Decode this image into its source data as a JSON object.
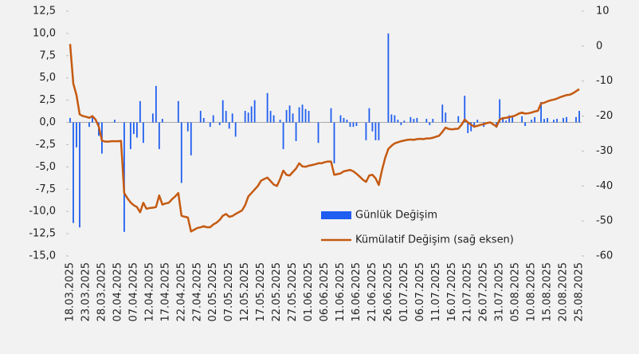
{
  "chart_data": {
    "type": "bar",
    "categories": [
      "18.03.2025",
      null,
      null,
      null,
      null,
      "23.03.2025",
      null,
      null,
      null,
      null,
      "28.03.2025",
      null,
      null,
      null,
      null,
      "02.04.2025",
      null,
      null,
      null,
      null,
      "07.04.2025",
      null,
      null,
      null,
      null,
      "12.04.2025",
      null,
      null,
      null,
      null,
      "17.04.2025",
      null,
      null,
      null,
      null,
      "22.04.2025",
      null,
      null,
      null,
      null,
      "27.04.2025",
      null,
      null,
      null,
      null,
      "02.05.2025",
      null,
      null,
      null,
      null,
      "07.05.2025",
      null,
      null,
      null,
      null,
      "12.05.2025",
      null,
      null,
      null,
      null,
      "17.05.2025",
      null,
      null,
      null,
      null,
      "22.05.2025",
      null,
      null,
      null,
      null,
      "27.05.2025",
      null,
      null,
      null,
      null,
      "01.06.2025",
      null,
      null,
      null,
      null,
      "06.06.2025",
      null,
      null,
      null,
      null,
      "11.06.2025",
      null,
      null,
      null,
      null,
      "16.06.2025",
      null,
      null,
      null,
      null,
      "21.06.2025",
      null,
      null,
      null,
      null,
      "26.06.2025",
      null,
      null,
      null,
      null,
      "01.07.2025",
      null,
      null,
      null,
      null,
      "06.07.2025",
      null,
      null,
      null,
      null,
      "11.07.2025",
      null,
      null,
      null,
      null,
      "16.07.2025",
      null,
      null,
      null,
      null,
      "21.07.2025",
      null,
      null,
      null,
      null,
      "26.07.2025",
      null,
      null,
      null,
      null,
      "31.07.2025",
      null,
      null,
      null,
      null,
      "05.08.2025",
      null,
      null,
      null,
      null,
      "10.08.2025",
      null,
      null,
      null,
      null,
      "15.08.2025",
      null,
      null,
      null,
      null,
      "20.08.2025",
      null,
      null,
      null,
      null,
      "25.08.2025"
    ],
    "series": [
      {
        "name": "Günlük Değişim",
        "type": "bar",
        "color": "#1f5ef0",
        "values": [
          0.5,
          -11.3,
          -2.8,
          -11.8,
          0,
          0,
          -0.5,
          0.6,
          0,
          -1.5,
          -3.5,
          0,
          0,
          0,
          0.3,
          0,
          0,
          -12.3,
          0,
          -3,
          -1.3,
          -1.7,
          2.4,
          -2.3,
          0,
          0,
          1,
          4.1,
          -3,
          0.4,
          0,
          0,
          0,
          0,
          2.4,
          -6.8,
          0,
          -1,
          -3.7,
          0,
          0,
          1.3,
          0.5,
          0,
          -0.5,
          0.8,
          0,
          -0.3,
          2.5,
          1.3,
          -0.7,
          1,
          -1.6,
          0,
          0,
          1.3,
          1.1,
          1.8,
          2.5,
          0,
          0,
          0,
          3.3,
          1.3,
          0.8,
          0,
          0.3,
          -3,
          1.4,
          1.9,
          1,
          -2.1,
          1.7,
          2,
          1.5,
          1.3,
          0,
          0,
          -2.3,
          0,
          0,
          0,
          1.6,
          -4.6,
          0,
          0.8,
          0.5,
          0.3,
          -0.5,
          -0.5,
          -0.4,
          0,
          0,
          -2,
          1.6,
          -1,
          -2,
          -2,
          0,
          0,
          10,
          0.9,
          0.8,
          0.3,
          -0.3,
          0.2,
          0,
          0.6,
          0.4,
          0.5,
          0,
          0,
          0.4,
          -0.3,
          0.4,
          0,
          0,
          2,
          1.1,
          0,
          0,
          0,
          0.7,
          0,
          3,
          -1.2,
          -1,
          -0.6,
          0.3,
          0,
          -0.5,
          0,
          0,
          0,
          -0.6,
          2.6,
          0.5,
          0.2,
          0.8,
          0.6,
          0,
          0,
          0.7,
          -0.4,
          0,
          0.3,
          0.6,
          0,
          2.3,
          0.4,
          0.5,
          0,
          0.3,
          0.4,
          0,
          0.5,
          0.6,
          0,
          0,
          0.6,
          1.3
        ]
      },
      {
        "name": "Kümülatif Değişim (sağ eksen)",
        "type": "line",
        "axis": "y2",
        "color": "#c55a11",
        "values": [
          0.6,
          -10.7,
          -14,
          -19.5,
          -20,
          -20.2,
          -20.5,
          -20,
          -21,
          -23,
          -27,
          -27.3,
          -27.3,
          -27.2,
          -27.2,
          -27.2,
          -27.1,
          -42,
          -43.5,
          -44.7,
          -45.5,
          -46,
          -47.5,
          -44.8,
          -46.5,
          -46.3,
          -46.2,
          -46,
          -42.7,
          -45.3,
          -45,
          -44.8,
          -43.8,
          -43,
          -42,
          -48.5,
          -48.8,
          -49,
          -53,
          -52.5,
          -52,
          -51.8,
          -51.5,
          -51.8,
          -51.8,
          -51,
          -50.5,
          -49.7,
          -48.5,
          -48,
          -48.8,
          -48.6,
          -48,
          -47.5,
          -47,
          -45.5,
          -43,
          -42,
          -41,
          -40,
          -38.5,
          -38,
          -37.6,
          -38.6,
          -39.6,
          -40,
          -38,
          -35.6,
          -36.8,
          -37,
          -36,
          -35,
          -33.5,
          -34.4,
          -34.5,
          -34.2,
          -34,
          -33.8,
          -33.5,
          -33.5,
          -33.2,
          -33,
          -33,
          -36.8,
          -36.6,
          -36.4,
          -35.8,
          -35.6,
          -35.4,
          -35.8,
          -36.5,
          -37.3,
          -38.2,
          -38.8,
          -37,
          -36.8,
          -37.8,
          -39.7,
          -35.5,
          -32,
          -29.4,
          -28.5,
          -27.8,
          -27.5,
          -27.2,
          -27,
          -26.8,
          -26.7,
          -26.8,
          -26.6,
          -26.5,
          -26.6,
          -26.4,
          -26.4,
          -26.2,
          -25.9,
          -25.6,
          -24.5,
          -23.3,
          -23.7,
          -23.8,
          -23.7,
          -23.6,
          -22.5,
          -21,
          -21.8,
          -22.5,
          -23,
          -22.8,
          -22.5,
          -22.3,
          -22,
          -21.8,
          -22.4,
          -23,
          -21,
          -20.6,
          -20.5,
          -20.3,
          -20.1,
          -19.8,
          -19.3,
          -19,
          -19.3,
          -19.2,
          -19,
          -18.7,
          -18.5,
          -16.4,
          -16.2,
          -15.8,
          -15.5,
          -15.3,
          -15,
          -14.6,
          -14.3,
          -14,
          -13.9,
          -13.5,
          -12.9,
          -12.3
        ]
      }
    ],
    "ylim": [
      -15,
      12.5
    ],
    "yticks": [
      {
        "value": 12.5,
        "label": "12,5"
      },
      {
        "value": 10,
        "label": "10,0"
      },
      {
        "value": 7.5,
        "label": "7,5"
      },
      {
        "value": 5,
        "label": "5,0"
      },
      {
        "value": 2.5,
        "label": "2,5"
      },
      {
        "value": 0,
        "label": "0,0"
      },
      {
        "value": -2.5,
        "label": "-2,5"
      },
      {
        "value": -5,
        "label": "-5,0"
      },
      {
        "value": -7.5,
        "label": "-7,5"
      },
      {
        "value": -10,
        "label": "-10,0"
      },
      {
        "value": -12.5,
        "label": "-12,5"
      },
      {
        "value": -15,
        "label": "-15,0"
      }
    ],
    "y2lim": [
      -60,
      10
    ],
    "y2ticks": [
      10,
      0,
      -10,
      -20,
      -30,
      -40,
      -50,
      -60
    ],
    "legend": "lower right"
  }
}
